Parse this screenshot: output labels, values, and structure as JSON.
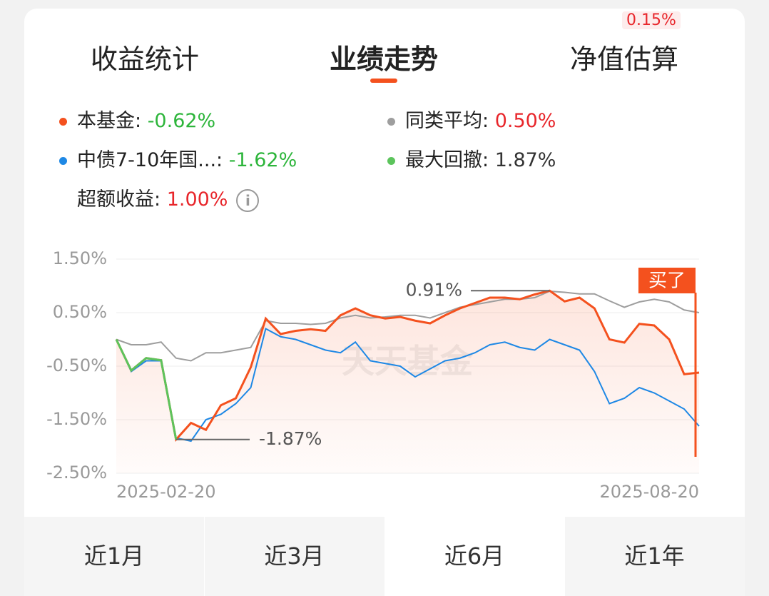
{
  "tabs": [
    "收益统计",
    "业绩走势",
    "净值估算"
  ],
  "active_tab": 1,
  "tab_badge": "0.15%",
  "legend": [
    {
      "name": "本基金",
      "value": "-0.62%",
      "color": "#f4511e",
      "value_color": "#2db53b"
    },
    {
      "name": "同类平均",
      "value": "0.50%",
      "color": "#9e9e9e",
      "value_color": "#e8262b"
    },
    {
      "name": "中债7-10年国...",
      "value": "-1.62%",
      "color": "#1e88e5",
      "value_color": "#2db53b"
    },
    {
      "name": "最大回撤",
      "value": "1.87%",
      "color": "#5cc45c",
      "value_color": "#333333"
    },
    {
      "name": "超额收益",
      "value": "1.00%",
      "value_color": "#e8262b"
    }
  ],
  "chart_data": {
    "type": "line",
    "watermark": "天天基金",
    "buy_label": "买了",
    "max_label": "0.91%",
    "min_label": "-1.87%",
    "categories": [
      "2025-02-20",
      null,
      null,
      null,
      null,
      null,
      null,
      null,
      null,
      null,
      null,
      null,
      null,
      null,
      null,
      null,
      null,
      null,
      null,
      null,
      null,
      null,
      null,
      null,
      null,
      null,
      null,
      null,
      null,
      null,
      null,
      null,
      null,
      null,
      null,
      null,
      null,
      null,
      null,
      "2025-08-20"
    ],
    "ylim": [
      -2.5,
      1.5
    ],
    "yticks": [
      {
        "value": 1.5,
        "label": "1.50%"
      },
      {
        "value": 0.5,
        "label": "0.50%"
      },
      {
        "value": -0.5,
        "label": "-0.50%"
      },
      {
        "value": -1.5,
        "label": "-1.50%"
      },
      {
        "value": -2.5,
        "label": "-2.50%"
      }
    ],
    "grid": true,
    "series": [
      {
        "name": "本基金",
        "color": "#f4511e",
        "values": [
          0,
          -0.58,
          -0.35,
          -0.39,
          -1.87,
          -1.56,
          -1.69,
          -1.23,
          -1.1,
          -0.52,
          0.39,
          0.1,
          0.16,
          0.19,
          0.16,
          0.45,
          0.58,
          0.45,
          0.39,
          0.42,
          0.35,
          0.3,
          0.45,
          0.58,
          0.68,
          0.78,
          0.78,
          0.75,
          0.84,
          0.91,
          0.71,
          0.78,
          0.58,
          0,
          -0.06,
          0.29,
          0.26,
          0,
          -0.65,
          -0.62
        ]
      },
      {
        "name": "同类平均",
        "color": "#9e9e9e",
        "values": [
          0,
          -0.1,
          -0.1,
          -0.05,
          -0.35,
          -0.4,
          -0.25,
          -0.25,
          -0.2,
          -0.15,
          0.35,
          0.3,
          0.3,
          0.28,
          0.3,
          0.4,
          0.45,
          0.4,
          0.42,
          0.45,
          0.45,
          0.4,
          0.5,
          0.6,
          0.65,
          0.7,
          0.75,
          0.75,
          0.78,
          0.9,
          0.88,
          0.85,
          0.85,
          0.72,
          0.6,
          0.7,
          0.75,
          0.7,
          0.55,
          0.5
        ]
      },
      {
        "name": "中债7-10年国...",
        "color": "#1e88e5",
        "values": [
          0,
          -0.6,
          -0.4,
          -0.4,
          -1.84,
          -1.9,
          -1.5,
          -1.4,
          -1.2,
          -0.9,
          0.2,
          0.05,
          0,
          -0.1,
          -0.2,
          -0.25,
          -0.05,
          -0.4,
          -0.45,
          -0.5,
          -0.7,
          -0.55,
          -0.4,
          -0.35,
          -0.25,
          -0.1,
          -0.05,
          -0.15,
          -0.2,
          0,
          -0.1,
          -0.2,
          -0.6,
          -1.2,
          -1.1,
          -0.9,
          -1,
          -1.15,
          -1.3,
          -1.62
        ]
      }
    ]
  },
  "periods": [
    "近1月",
    "近3月",
    "近6月",
    "近1年"
  ],
  "active_period": 2
}
